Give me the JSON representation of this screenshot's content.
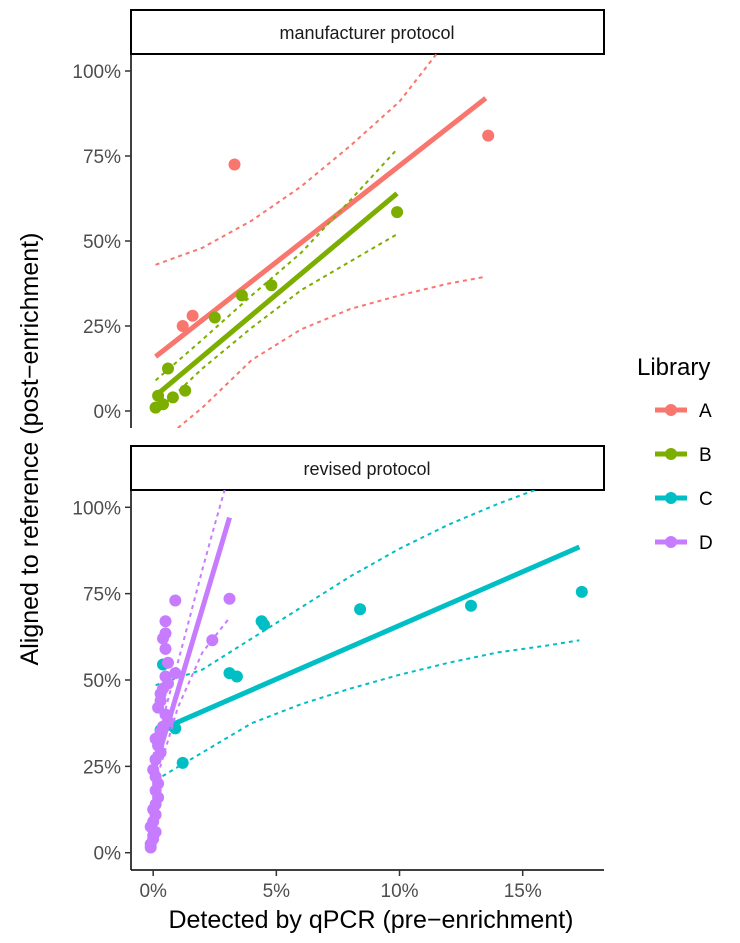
{
  "chart_data": {
    "type": "scatter",
    "xlabel": "Detected by qPCR (pre−enrichment)",
    "ylabel": "Aligned to reference (post−enrichment)",
    "x_ticks": [
      "0%",
      "5%",
      "10%",
      "15%"
    ],
    "y_ticks": [
      "0%",
      "25%",
      "50%",
      "75%",
      "100%"
    ],
    "xlim": [
      -0.9,
      18.3
    ],
    "ylim": [
      -5,
      105
    ],
    "legend": {
      "title": "Library",
      "position": "right"
    },
    "colors": {
      "A": "#F8766D",
      "B": "#7CAE00",
      "C": "#00BFC4",
      "D": "#C77CFF"
    },
    "panels": [
      {
        "title": "manufacturer protocol",
        "series": [
          {
            "name": "A",
            "points": [
              [
                1.2,
                25
              ],
              [
                1.6,
                28
              ],
              [
                3.3,
                72.5
              ],
              [
                13.6,
                81
              ]
            ],
            "fit": [
              [
                0.1,
                16
              ],
              [
                13.5,
                92
              ]
            ],
            "ci_upper": [
              [
                0.1,
                43
              ],
              [
                2,
                48
              ],
              [
                4,
                56
              ],
              [
                6,
                66
              ],
              [
                8,
                78
              ],
              [
                10,
                91
              ],
              [
                11.5,
                105
              ]
            ],
            "ci_lower": [
              [
                1,
                -5
              ],
              [
                2,
                1
              ],
              [
                4,
                15
              ],
              [
                6,
                24
              ],
              [
                8,
                30
              ],
              [
                10,
                34
              ],
              [
                12,
                37.5
              ],
              [
                13.5,
                39.5
              ]
            ]
          },
          {
            "name": "B",
            "points": [
              [
                0.1,
                1
              ],
              [
                0.2,
                4.5
              ],
              [
                0.4,
                2
              ],
              [
                0.6,
                12.5
              ],
              [
                0.8,
                4
              ],
              [
                1.3,
                6
              ],
              [
                2.5,
                27.5
              ],
              [
                3.6,
                34
              ],
              [
                4.8,
                37
              ],
              [
                9.9,
                58.5
              ]
            ],
            "fit": [
              [
                0.1,
                4.5
              ],
              [
                9.9,
                64
              ]
            ],
            "ci_upper": [
              [
                0.1,
                9
              ],
              [
                2,
                21
              ],
              [
                4,
                34
              ],
              [
                6,
                46.5
              ],
              [
                8,
                62
              ],
              [
                9.9,
                77
              ]
            ],
            "ci_lower": [
              [
                0.1,
                -0.5
              ],
              [
                2,
                12.5
              ],
              [
                4,
                24.5
              ],
              [
                6,
                35.5
              ],
              [
                8,
                44
              ],
              [
                9.9,
                52
              ]
            ]
          }
        ]
      },
      {
        "title": "revised protocol",
        "series": [
          {
            "name": "C",
            "points": [
              [
                0.1,
                27
              ],
              [
                0.2,
                33
              ],
              [
                0.3,
                35.5
              ],
              [
                0.4,
                54.5
              ],
              [
                0.6,
                37
              ],
              [
                0.9,
                36
              ],
              [
                1.2,
                26
              ],
              [
                3.1,
                52
              ],
              [
                3.4,
                51
              ],
              [
                4.4,
                67
              ],
              [
                4.5,
                66
              ],
              [
                8.4,
                70.5
              ],
              [
                12.9,
                71.5
              ],
              [
                17.4,
                75.5
              ]
            ],
            "fit": [
              [
                0.1,
                35
              ],
              [
                17.3,
                88.5
              ]
            ],
            "ci_upper": [
              [
                0.1,
                48.5
              ],
              [
                2,
                53
              ],
              [
                4,
                62
              ],
              [
                6,
                71
              ],
              [
                8,
                80
              ],
              [
                10,
                88
              ],
              [
                12,
                95
              ],
              [
                14,
                101
              ],
              [
                15.5,
                105
              ]
            ],
            "ci_lower": [
              [
                0.1,
                21
              ],
              [
                2,
                29
              ],
              [
                4,
                37.5
              ],
              [
                6,
                43
              ],
              [
                8,
                47.5
              ],
              [
                10,
                51.5
              ],
              [
                12,
                55
              ],
              [
                14,
                58
              ],
              [
                16,
                60
              ],
              [
                17.3,
                61.5
              ]
            ]
          },
          {
            "name": "D",
            "points": [
              [
                -0.1,
                1.5
              ],
              [
                -0.1,
                2.5
              ],
              [
                0,
                4
              ],
              [
                0,
                5
              ],
              [
                0.1,
                6
              ],
              [
                -0.1,
                7.5
              ],
              [
                0,
                9
              ],
              [
                0.1,
                11
              ],
              [
                0,
                12.5
              ],
              [
                0.1,
                14
              ],
              [
                0.2,
                16
              ],
              [
                0.1,
                18
              ],
              [
                0.2,
                20
              ],
              [
                0.1,
                22
              ],
              [
                0,
                24
              ],
              [
                0.1,
                27
              ],
              [
                0.3,
                29
              ],
              [
                0.2,
                31
              ],
              [
                0.1,
                33
              ],
              [
                0.3,
                35
              ],
              [
                0.4,
                36.5
              ],
              [
                0.6,
                38
              ],
              [
                0.5,
                40
              ],
              [
                0.2,
                42
              ],
              [
                0.3,
                44
              ],
              [
                0.3,
                46
              ],
              [
                0.4,
                47.5
              ],
              [
                0.6,
                49
              ],
              [
                0.5,
                51
              ],
              [
                0.9,
                52
              ],
              [
                0.6,
                55
              ],
              [
                0.5,
                59
              ],
              [
                0.4,
                62
              ],
              [
                0.5,
                63.5
              ],
              [
                0.5,
                67
              ],
              [
                0.9,
                73
              ],
              [
                2.4,
                61.5
              ],
              [
                3.1,
                73.5
              ]
            ],
            "fit": [
              [
                0,
                23
              ],
              [
                3.1,
                97
              ]
            ],
            "ci_upper": [
              [
                0,
                28
              ],
              [
                1,
                55
              ],
              [
                2,
                82
              ],
              [
                2.5,
                95
              ],
              [
                2.9,
                105
              ]
            ],
            "ci_lower": [
              [
                0,
                18
              ],
              [
                1,
                42
              ],
              [
                2,
                58
              ],
              [
                3.1,
                68
              ]
            ]
          }
        ]
      }
    ]
  }
}
